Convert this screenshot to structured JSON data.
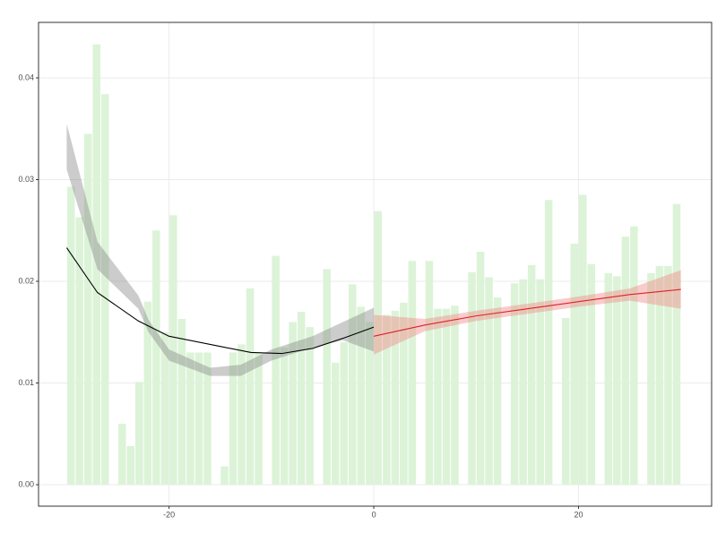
{
  "chart_data": {
    "type": "histogram",
    "bins": [
      -30,
      -29.167,
      -28.333,
      -27.5,
      -26.667,
      -25.833,
      -25,
      -24.167,
      -23.333,
      -22.5,
      -21.667,
      -20.833,
      -20,
      -19.167,
      -18.333,
      -17.5,
      -16.667,
      -15.833,
      -15,
      -14.167,
      -13.333,
      -12.5,
      -11.667,
      -10.833,
      -10,
      -9.167,
      -8.333,
      -7.5,
      -6.667,
      -5.833,
      -5,
      -4.167,
      -3.333,
      -2.5,
      -1.667,
      -0.833,
      0,
      0.833,
      1.667,
      2.5,
      3.333,
      4.167,
      5,
      5.833,
      6.667,
      7.5,
      8.333,
      9.167,
      10,
      10.833,
      11.667,
      12.5,
      13.333,
      14.167,
      15,
      15.833,
      16.667,
      17.5,
      18.333,
      19.167,
      20,
      20.833,
      21.667,
      22.5,
      23.333,
      24.167,
      25,
      25.833,
      26.667,
      27.5,
      28.333,
      29.167,
      30
    ],
    "values": [
      0.0293,
      0.0263,
      0.0345,
      0.0433,
      0.0384,
      0,
      0.006,
      0.0038,
      0.0101,
      0.018,
      0.025,
      0.015,
      0.0265,
      0.0163,
      0.013,
      0.013,
      0.013,
      0,
      0.0018,
      0.013,
      0.0138,
      0.0193,
      0.013,
      0,
      0.0225,
      0.0135,
      0.016,
      0.017,
      0.0155,
      0,
      0.0212,
      0.012,
      0.014,
      0.0197,
      0.0175,
      0.016,
      0.0269,
      0.0167,
      0.0171,
      0.0179,
      0.022,
      0,
      0.022,
      0.0173,
      0.0173,
      0.0176,
      0,
      0.0209,
      0.0229,
      0.0204,
      0.0184,
      0,
      0.0198,
      0.0202,
      0.0216,
      0.0202,
      0.028,
      0,
      0.0164,
      0.0237,
      0.0285,
      0.0217,
      0,
      0.0208,
      0.0205,
      0.0244,
      0.0254,
      0,
      0.0208,
      0.0215,
      0.0215,
      0.0276
    ],
    "color": "#dcf3d8",
    "series": [
      {
        "type": "ribbon",
        "color": "#808080",
        "x": [
          -30,
          -27,
          -23,
          -22,
          -20,
          -16,
          -13,
          -10,
          -6,
          -3,
          0
        ],
        "lower": [
          0.031,
          0.0212,
          0.0173,
          0.015,
          0.0122,
          0.0107,
          0.0107,
          0.0122,
          0.0135,
          0.0142,
          0.0131
        ],
        "upper": [
          0.0355,
          0.0239,
          0.0186,
          0.0162,
          0.0133,
          0.0115,
          0.0118,
          0.0133,
          0.0146,
          0.016,
          0.0174
        ]
      },
      {
        "type": "line",
        "color": "#000000",
        "x": [
          -30,
          -27,
          -23,
          -20,
          -15,
          -12,
          -9,
          -6,
          -3,
          0
        ],
        "values": [
          0.0233,
          0.0189,
          0.0161,
          0.0146,
          0.0136,
          0.013,
          0.0129,
          0.0134,
          0.0144,
          0.0155
        ]
      },
      {
        "type": "ribbon",
        "color": "#f08080",
        "x": [
          0,
          5,
          10,
          15,
          20,
          25,
          30
        ],
        "lower": [
          0.0128,
          0.0151,
          0.0161,
          0.0168,
          0.0175,
          0.0181,
          0.0173
        ],
        "upper": [
          0.0167,
          0.0163,
          0.0171,
          0.0178,
          0.0185,
          0.0193,
          0.0211
        ]
      },
      {
        "type": "line",
        "color": "#e0202a",
        "x": [
          0,
          5,
          10,
          15,
          20,
          25,
          30
        ],
        "values": [
          0.0146,
          0.0157,
          0.0166,
          0.0173,
          0.018,
          0.0187,
          0.0192
        ]
      }
    ],
    "xlim": [
      -32.75,
      33
    ],
    "ylim": [
      -0.00211,
      0.04546
    ],
    "xticks": [
      -20,
      0,
      20
    ],
    "yticks": [
      {
        "value": 0,
        "label": "0.00"
      },
      {
        "value": 0.01,
        "label": "0.01"
      },
      {
        "value": 0.02,
        "label": "0.02"
      },
      {
        "value": 0.03,
        "label": "0.03"
      },
      {
        "value": 0.04,
        "label": "0.04"
      }
    ],
    "grid": true
  }
}
